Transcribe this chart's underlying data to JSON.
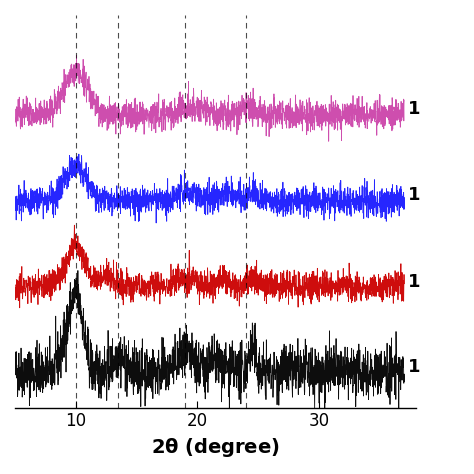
{
  "x_min": 5,
  "x_max": 37,
  "x_label": "2θ (degree)",
  "x_ticks": [
    10,
    20,
    30
  ],
  "dashed_lines": [
    10,
    13.5,
    19,
    24
  ],
  "colors": [
    "black",
    "#cc0000",
    "#1a1aff",
    "#cc44aa"
  ],
  "offsets": [
    0,
    1.2,
    2.4,
    3.6
  ],
  "labels": [
    "1",
    "1",
    "1",
    "1"
  ],
  "noise_scale": [
    0.18,
    0.1,
    0.1,
    0.1
  ],
  "peak_positions": [
    [
      9.5,
      10.2,
      13.5,
      19.0,
      21.5,
      24.5
    ],
    [
      10.0,
      12.5,
      19.0,
      22.0,
      24.5
    ],
    [
      10.0,
      19.0,
      22.5,
      24.5
    ],
    [
      10.0,
      19.5,
      24.0
    ]
  ],
  "peak_heights": [
    [
      0.55,
      0.75,
      0.25,
      0.2,
      0.15,
      0.3
    ],
    [
      0.55,
      0.15,
      0.12,
      0.12,
      0.1
    ],
    [
      0.5,
      0.12,
      0.1,
      0.1
    ],
    [
      0.6,
      0.12,
      0.1
    ]
  ],
  "peak_widths": [
    [
      0.6,
      0.5,
      0.4,
      0.8,
      0.5,
      0.3
    ],
    [
      0.8,
      0.5,
      0.8,
      0.5,
      0.5
    ],
    [
      0.9,
      0.9,
      0.6,
      0.5
    ],
    [
      1.0,
      0.9,
      0.6
    ]
  ],
  "bg_slope": [
    0.0,
    0.0,
    0.0,
    0.0
  ],
  "figsize": [
    4.74,
    4.74
  ],
  "dpi": 100
}
